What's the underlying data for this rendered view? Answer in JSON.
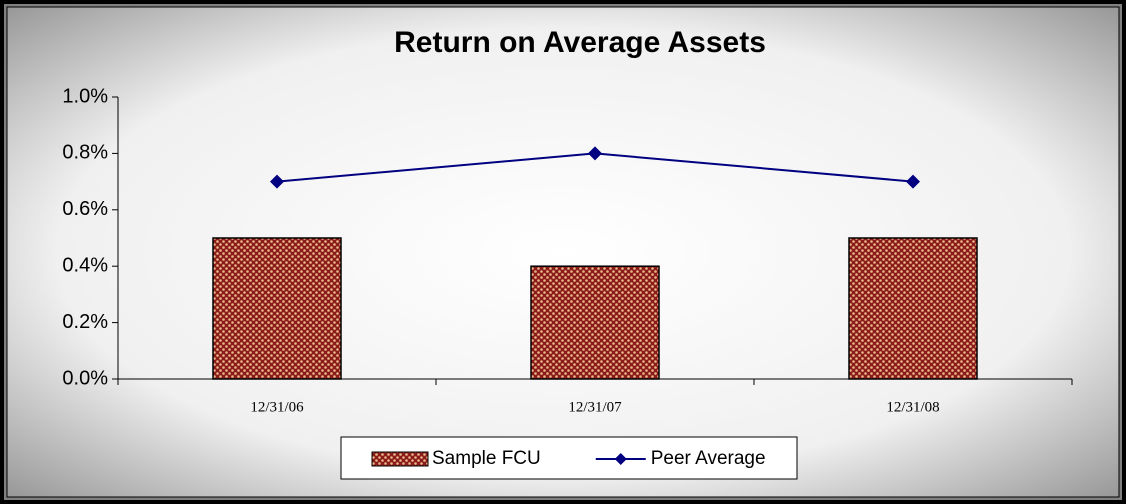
{
  "chart_data": {
    "type": "bar-line",
    "title": "Return on Average Assets",
    "categories": [
      "12/31/06",
      "12/31/07",
      "12/31/08"
    ],
    "series": [
      {
        "name": "Sample FCU",
        "type": "bar",
        "color": "#8b1a1a",
        "values": [
          0.5,
          0.4,
          0.5
        ]
      },
      {
        "name": "Peer Average",
        "type": "line",
        "color": "#000080",
        "values": [
          0.7,
          0.8,
          0.7
        ]
      }
    ],
    "ylim": [
      0,
      1
    ],
    "yticks": [
      {
        "value": 0,
        "label": "0.0%"
      },
      {
        "value": 0.2,
        "label": "0.2%"
      },
      {
        "value": 0.4,
        "label": "0.4%"
      },
      {
        "value": 0.6,
        "label": "0.6%"
      },
      {
        "value": 0.8,
        "label": "0.8%"
      },
      {
        "value": 1,
        "label": "1.0%"
      }
    ],
    "grid": false,
    "legend": "bottom"
  }
}
